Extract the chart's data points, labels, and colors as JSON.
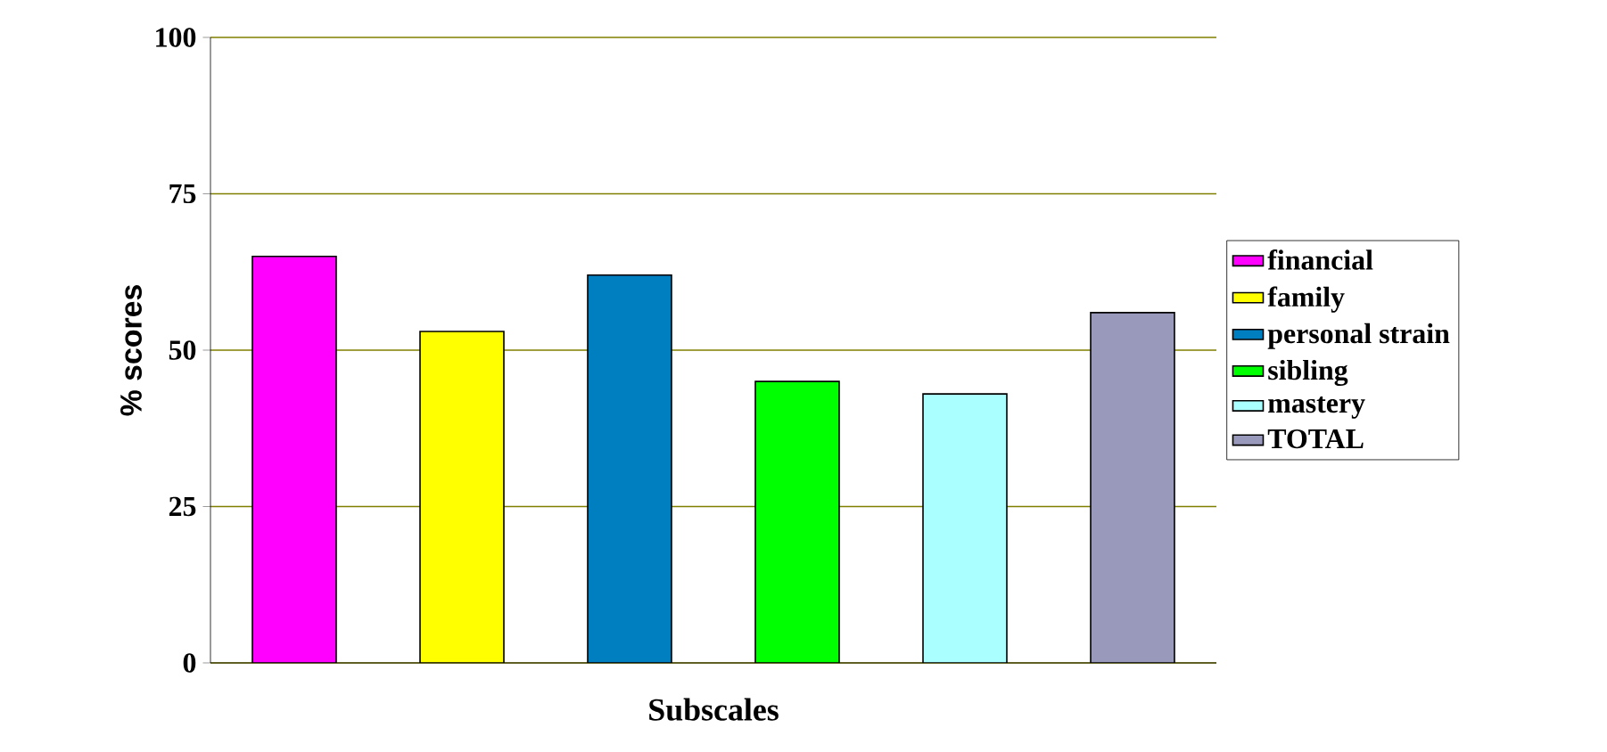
{
  "chart_data": {
    "type": "bar",
    "xlabel": "Subscales",
    "ylabel": "% scores",
    "categories": [
      null,
      null,
      null,
      null,
      null,
      null
    ],
    "series": [
      {
        "name": "financial",
        "color": "#ff00ff",
        "values": [
          65,
          null,
          null,
          null,
          null,
          null
        ]
      },
      {
        "name": "family",
        "color": "#ffff00",
        "values": [
          null,
          53,
          null,
          null,
          null,
          null
        ]
      },
      {
        "name": "personal strain",
        "color": "#007fc0",
        "values": [
          null,
          null,
          62,
          null,
          null,
          null
        ]
      },
      {
        "name": "sibling",
        "color": "#00ff00",
        "values": [
          null,
          null,
          null,
          45,
          null,
          null
        ]
      },
      {
        "name": "mastery",
        "color": "#aaffff",
        "values": [
          null,
          null,
          null,
          null,
          43,
          null
        ]
      },
      {
        "name": "TOTAL",
        "color": "#9999bb",
        "values": [
          null,
          null,
          null,
          null,
          null,
          56
        ]
      }
    ],
    "ylim": [
      0,
      100
    ],
    "yticks": [
      0,
      25,
      50,
      75,
      100
    ],
    "grid": "y",
    "legend": "right"
  }
}
